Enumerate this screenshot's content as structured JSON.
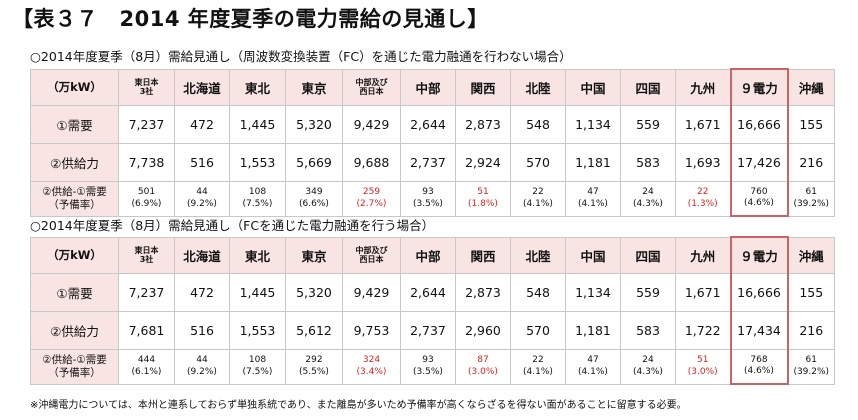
{
  "title": "【表３７　2014 年度夏季の電力需給の見通し】",
  "colors": {
    "header_bg": "#f9e4e4",
    "highlight_border": "#c86464",
    "warning_text": "#e02020",
    "grid": "#c8c8c8"
  },
  "tables": [
    {
      "heading": "○2014年度夏季（8月）需給見通し（周波数変換装置（FC）を通じた電力融通を行わない場合）",
      "header": [
        "（万kW）",
        "東日本\n3社",
        "北海道",
        "東北",
        "東京",
        "中部及び\n西日本",
        "中部",
        "関西",
        "北陸",
        "中国",
        "四国",
        "九州",
        "９電力",
        "沖縄"
      ],
      "rows": {
        "demand": {
          "label": "①需要",
          "values": [
            "7,237",
            "472",
            "1,445",
            "5,320",
            "9,429",
            "2,644",
            "2,873",
            "548",
            "1,134",
            "559",
            "1,671",
            "16,666",
            "155"
          ]
        },
        "supply": {
          "label": "②供給力",
          "values": [
            "7,738",
            "516",
            "1,553",
            "5,669",
            "9,688",
            "2,737",
            "2,924",
            "570",
            "1,181",
            "583",
            "1,693",
            "17,426",
            "216"
          ]
        },
        "reserve": {
          "label": "②供給-①需要",
          "sublabel": "（予備率）",
          "values": [
            "501",
            "44",
            "108",
            "349",
            "259",
            "93",
            "51",
            "22",
            "47",
            "24",
            "22",
            "760",
            "61"
          ],
          "rates": [
            "(6.9%)",
            "(9.2%)",
            "(7.5%)",
            "(6.6%)",
            "(2.7%)",
            "(3.5%)",
            "(1.8%)",
            "(4.1%)",
            "(4.1%)",
            "(4.3%)",
            "(1.3%)",
            "(4.6%)",
            "(39.2%)"
          ],
          "warn": [
            false,
            false,
            false,
            false,
            true,
            false,
            true,
            false,
            false,
            false,
            true,
            false,
            false
          ]
        }
      }
    },
    {
      "heading": "○2014年度夏季（8月）需給見通し（FCを通じた電力融通を行う場合）",
      "header": [
        "（万kW）",
        "東日本\n3社",
        "北海道",
        "東北",
        "東京",
        "中部及び\n西日本",
        "中部",
        "関西",
        "北陸",
        "中国",
        "四国",
        "九州",
        "９電力",
        "沖縄"
      ],
      "rows": {
        "demand": {
          "label": "①需要",
          "values": [
            "7,237",
            "472",
            "1,445",
            "5,320",
            "9,429",
            "2,644",
            "2,873",
            "548",
            "1,134",
            "559",
            "1,671",
            "16,666",
            "155"
          ]
        },
        "supply": {
          "label": "②供給力",
          "values": [
            "7,681",
            "516",
            "1,553",
            "5,612",
            "9,753",
            "2,737",
            "2,960",
            "570",
            "1,181",
            "583",
            "1,722",
            "17,434",
            "216"
          ]
        },
        "reserve": {
          "label": "②供給-①需要",
          "sublabel": "（予備率）",
          "values": [
            "444",
            "44",
            "108",
            "292",
            "324",
            "93",
            "87",
            "22",
            "47",
            "24",
            "51",
            "768",
            "61"
          ],
          "rates": [
            "(6.1%)",
            "(9.2%)",
            "(7.5%)",
            "(5.5%)",
            "(3.4%)",
            "(3.5%)",
            "(3.0%)",
            "(4.1%)",
            "(4.1%)",
            "(4.3%)",
            "(3.0%)",
            "(4.6%)",
            "(39.2%)"
          ],
          "warn": [
            false,
            false,
            false,
            false,
            true,
            false,
            true,
            false,
            false,
            false,
            true,
            false,
            false
          ]
        }
      }
    }
  ],
  "footnote": "※沖縄電力については、本州と連系しておらず単独系統であり、また離島が多いため予備率が高くならざるを得ない面があることに留意する必要。"
}
